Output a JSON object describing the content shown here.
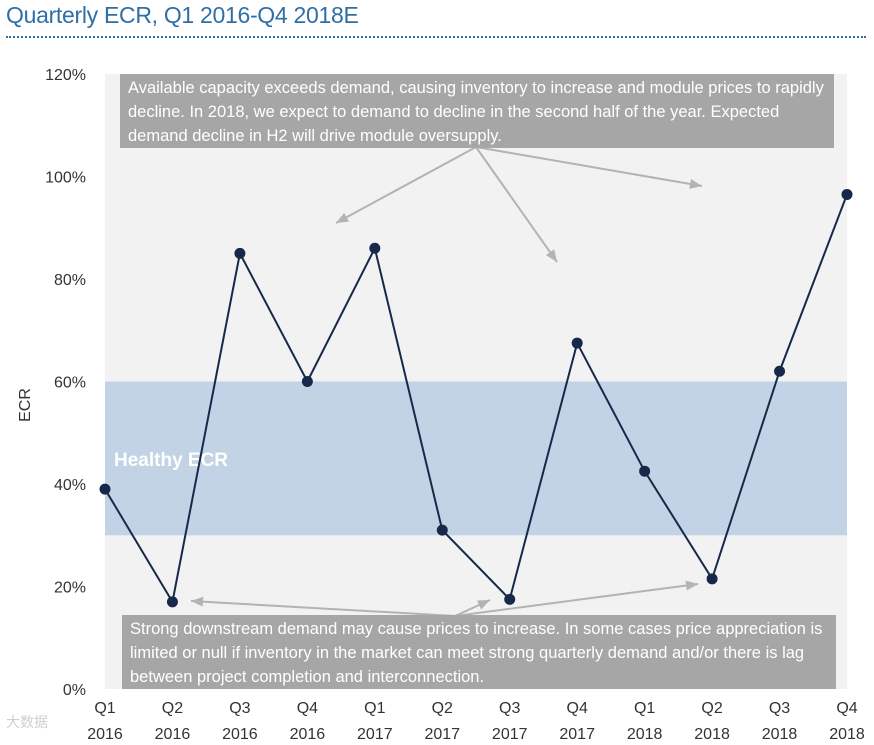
{
  "title": "Quarterly ECR, Q1 2016-Q4 2018E",
  "colors": {
    "title": "#2e6fa8",
    "line": "#17294a",
    "plot_bg": "#f2f2f2",
    "healthy_band": "#c2d3e5",
    "annotation_bg": "#a6a6a6",
    "arrow": "#b3b3b3"
  },
  "chart_data": {
    "type": "line",
    "title": "Quarterly ECR, Q1 2016-Q4 2018E",
    "ylabel": "ECR",
    "xlabel": "",
    "ylim": [
      0,
      120
    ],
    "y_ticks": [
      "0%",
      "20%",
      "40%",
      "60%",
      "80%",
      "100%",
      "120%"
    ],
    "categories": [
      {
        "quarter": "Q1",
        "year": "2016"
      },
      {
        "quarter": "Q2",
        "year": "2016"
      },
      {
        "quarter": "Q3",
        "year": "2016"
      },
      {
        "quarter": "Q4",
        "year": "2016"
      },
      {
        "quarter": "Q1",
        "year": "2017"
      },
      {
        "quarter": "Q2",
        "year": "2017"
      },
      {
        "quarter": "Q3",
        "year": "2017"
      },
      {
        "quarter": "Q4",
        "year": "2017"
      },
      {
        "quarter": "Q1",
        "year": "2018"
      },
      {
        "quarter": "Q2",
        "year": "2018"
      },
      {
        "quarter": "Q3",
        "year": "2018"
      },
      {
        "quarter": "Q4",
        "year": "2018"
      }
    ],
    "series": [
      {
        "name": "ECR",
        "values": [
          39,
          17,
          85,
          60,
          86,
          31,
          17.5,
          67.5,
          42.5,
          21.5,
          62,
          96.5
        ]
      }
    ],
    "healthy_band": {
      "label": "Healthy ECR",
      "from": 30,
      "to": 60
    }
  },
  "annotations": {
    "top": "Available capacity exceeds demand, causing inventory to increase and module prices to rapidly decline. In 2018, we expect to demand to decline in the second half of the year. Expected demand decline in H2 will drive module oversupply.",
    "bottom": "Strong downstream demand may cause prices to increase. In some cases price appreciation is limited or null if inventory in the market can meet strong quarterly demand and/or there is lag between project completion and interconnection."
  },
  "watermark": "大数据"
}
